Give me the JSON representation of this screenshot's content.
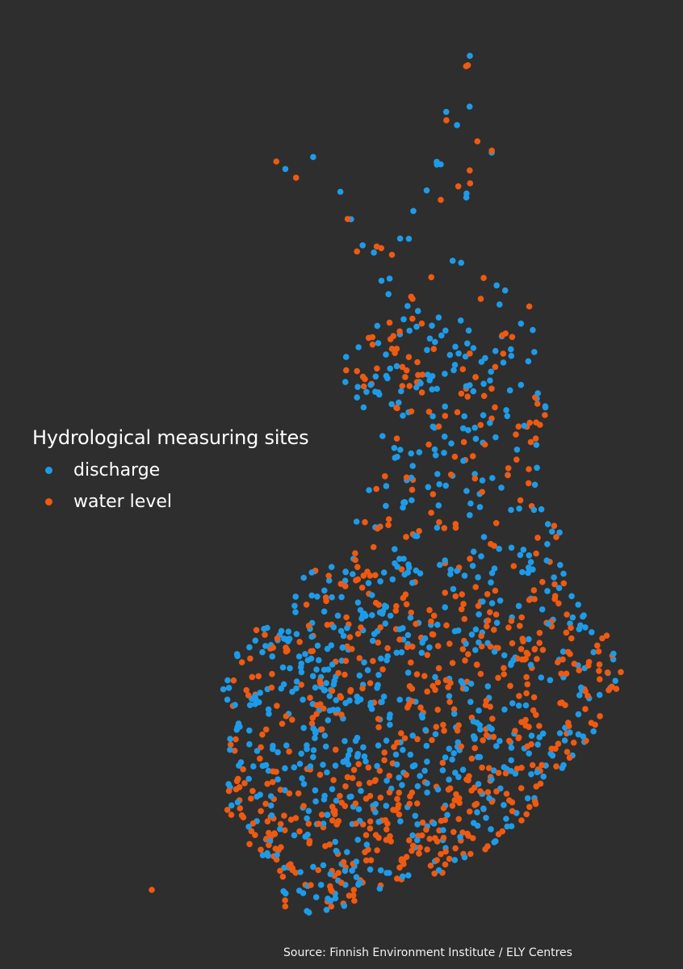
{
  "map": {
    "legend_title": "Hydrological measuring sites",
    "source": "Source: Finnish Environment Institute / ELY Centres"
  },
  "layers": [
    {
      "key": "discharge",
      "label": "discharge",
      "color": "#1e9be8"
    },
    {
      "key": "water_level",
      "label": "water level",
      "color": "#ee5a12"
    }
  ],
  "colors": {
    "background": "#2e2e2e",
    "text": "#ffffff"
  }
}
